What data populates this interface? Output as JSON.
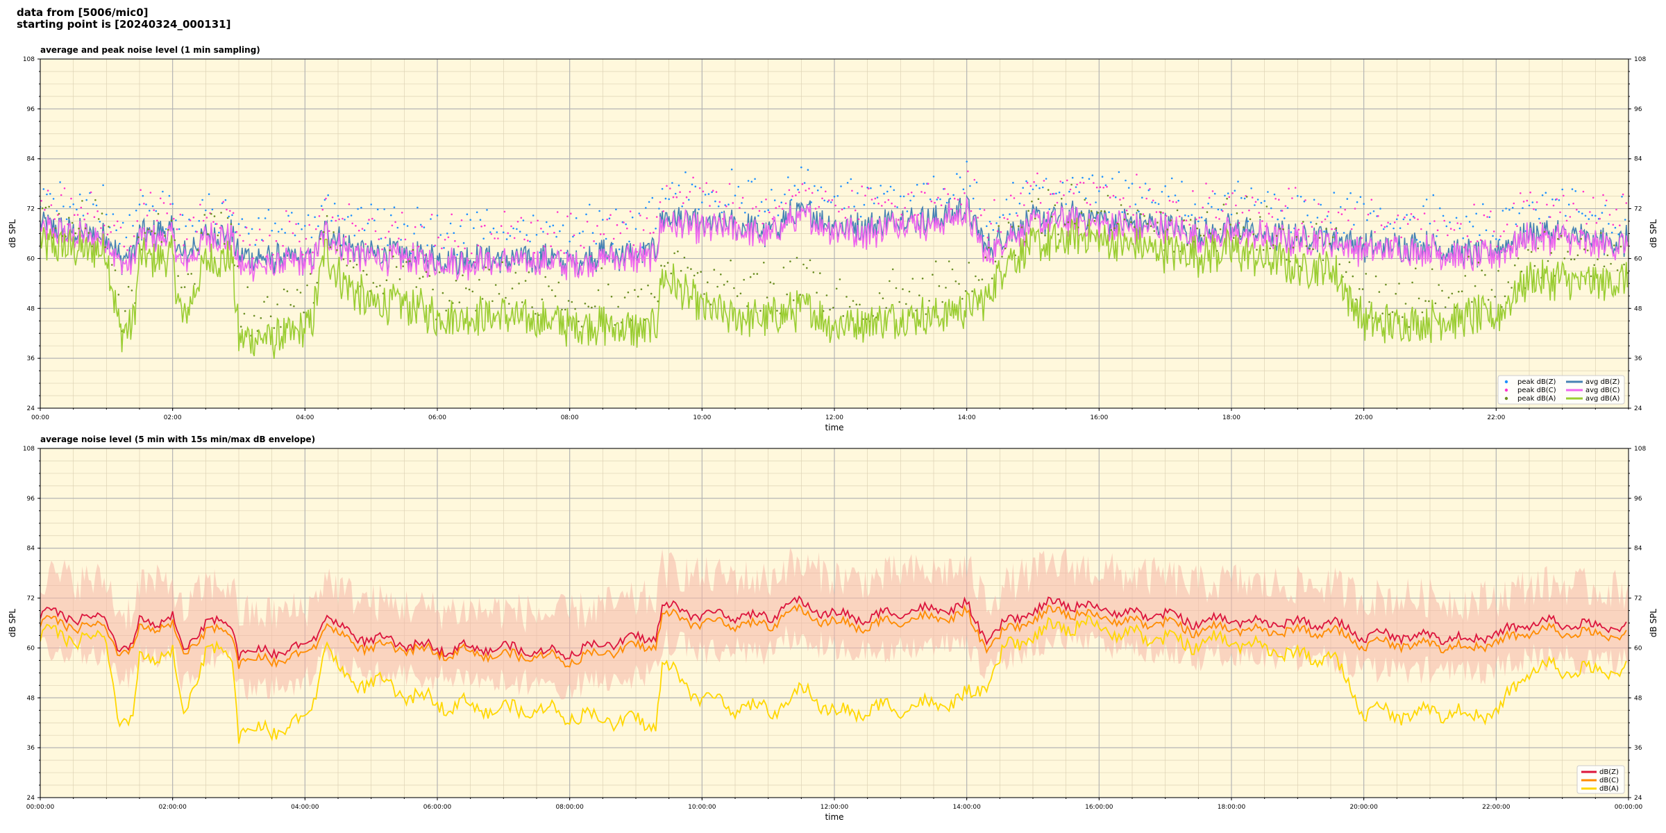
{
  "header": {
    "line1": "data from [5006/mic0]",
    "line2": "starting point is [20240324_000131]"
  },
  "colors": {
    "plot_bg": "#fff8dc",
    "grid_major": "#b4b4b4",
    "grid_minor": "#ddd2b4",
    "avg_z": "#4682b4",
    "avg_c": "#ee66ee",
    "avg_a": "#9acd32",
    "peak_z": "#1e90ff",
    "peak_c": "#ff33cc",
    "peak_a": "#6b8e23",
    "line_z": "#dc143c",
    "line_c": "#ff8c00",
    "line_a": "#ffd700",
    "envelope": "#f5b7a8"
  },
  "chart_data": [
    {
      "type": "line",
      "title": "average and peak noise level (1 min sampling)",
      "xlabel": "time",
      "ylabel": "dB SPL",
      "ylabel_right": "dB SPL",
      "ylim": [
        24,
        108
      ],
      "yticks": [
        24,
        36,
        48,
        60,
        72,
        84,
        96,
        108
      ],
      "xlim_hours": [
        0,
        24
      ],
      "xtick_labels": [
        "00:00",
        "02:00",
        "04:00",
        "06:00",
        "08:00",
        "10:00",
        "12:00",
        "14:00",
        "16:00",
        "18:00",
        "20:00",
        "22:00"
      ],
      "grid": true,
      "legend_position": "bottom-right",
      "legend": [
        "peak dB(Z)",
        "peak dB(C)",
        "peak dB(A)",
        "avg dB(Z)",
        "avg dB(C)",
        "avg dB(A)"
      ],
      "profile": {
        "x_hours": [
          0,
          0.3,
          0.6,
          1.0,
          1.2,
          1.4,
          1.5,
          1.8,
          2.0,
          2.15,
          2.5,
          2.9,
          3.0,
          3.5,
          3.9,
          4.1,
          4.3,
          4.6,
          5.0,
          5.5,
          6.0,
          6.5,
          7.0,
          7.5,
          7.7,
          8.0,
          8.5,
          9.0,
          9.3,
          9.4,
          9.7,
          10.0,
          10.5,
          11.0,
          11.3,
          11.6,
          12.0,
          12.5,
          13.0,
          13.5,
          14.0,
          14.3,
          14.6,
          15.0,
          15.4,
          15.8,
          16.2,
          16.6,
          17.0,
          17.5,
          18.0,
          18.5,
          19.0,
          19.5,
          20.0,
          20.5,
          21.0,
          21.5,
          22.0,
          22.5,
          23.0,
          23.5,
          24.0
        ],
        "avg_z": [
          68,
          67,
          66,
          66,
          60,
          61,
          66,
          66,
          66,
          60,
          66,
          66,
          60,
          60,
          60,
          60,
          67,
          63,
          61,
          61,
          60,
          60,
          60,
          60,
          60,
          59,
          61,
          61,
          62,
          70,
          69,
          68,
          68,
          66,
          70,
          71,
          68,
          67,
          70,
          69,
          72,
          62,
          66,
          69,
          70,
          70,
          69,
          68,
          68,
          66,
          67,
          66,
          65,
          65,
          63,
          63,
          63,
          61,
          62,
          66,
          66,
          64,
          64
        ],
        "avg_c": [
          67,
          66,
          65,
          65,
          58,
          59,
          65,
          65,
          65,
          58,
          65,
          65,
          58,
          58,
          59,
          59,
          66,
          62,
          60,
          60,
          59,
          59,
          59,
          59,
          59,
          58,
          60,
          60,
          61,
          69,
          68,
          67,
          67,
          65,
          69,
          70,
          67,
          66,
          69,
          68,
          71,
          60,
          65,
          68,
          69,
          69,
          68,
          67,
          67,
          65,
          66,
          65,
          64,
          64,
          62,
          62,
          62,
          60,
          61,
          65,
          65,
          63,
          63
        ],
        "avg_a": [
          64,
          63,
          62,
          62,
          42,
          44,
          60,
          60,
          60,
          44,
          60,
          60,
          41,
          41,
          42,
          44,
          62,
          54,
          49,
          49,
          46,
          46,
          46,
          45,
          45,
          44,
          44,
          43,
          43,
          56,
          52,
          48,
          46,
          45,
          47,
          48,
          44,
          45,
          46,
          46,
          48,
          50,
          60,
          63,
          64,
          66,
          64,
          63,
          62,
          61,
          62,
          60,
          58,
          58,
          45,
          44,
          45,
          46,
          46,
          55,
          55,
          54,
          55
        ],
        "peak_offset": 5
      }
    },
    {
      "type": "line",
      "title": "average noise level (5 min with 15s min/max dB envelope)",
      "xlabel": "time",
      "ylabel": "dB SPL",
      "ylabel_right": "dB SPL",
      "ylim": [
        24,
        108
      ],
      "yticks": [
        24,
        36,
        48,
        60,
        72,
        84,
        96,
        108
      ],
      "xlim_hours": [
        0,
        24
      ],
      "xtick_labels": [
        "00:00:00",
        "02:00:00",
        "04:00:00",
        "06:00:00",
        "08:00:00",
        "10:00:00",
        "12:00:00",
        "14:00:00",
        "16:00:00",
        "18:00:00",
        "20:00:00",
        "22:00:00",
        "00:00:00"
      ],
      "grid": true,
      "legend_position": "bottom-right",
      "legend": [
        "dB(Z)",
        "dB(C)",
        "dB(A)"
      ],
      "profile": {
        "x_hours": [
          0,
          0.3,
          0.6,
          1.0,
          1.2,
          1.4,
          1.5,
          1.8,
          2.0,
          2.15,
          2.5,
          2.9,
          3.0,
          3.5,
          3.9,
          4.1,
          4.3,
          4.6,
          5.0,
          5.5,
          6.0,
          6.5,
          7.0,
          7.5,
          7.7,
          8.0,
          8.5,
          9.0,
          9.3,
          9.4,
          9.7,
          10.0,
          10.5,
          11.0,
          11.3,
          11.6,
          12.0,
          12.5,
          13.0,
          13.5,
          14.0,
          14.3,
          14.6,
          15.0,
          15.4,
          15.8,
          16.2,
          16.6,
          17.0,
          17.5,
          18.0,
          18.5,
          19.0,
          19.5,
          20.0,
          20.5,
          21.0,
          21.5,
          22.0,
          22.5,
          23.0,
          23.5,
          24.0
        ],
        "db_z": [
          68,
          68,
          67,
          67,
          59,
          60,
          67,
          66,
          67,
          59,
          66,
          66,
          59,
          59,
          60,
          61,
          68,
          64,
          62,
          61,
          60,
          60,
          60,
          59,
          59,
          59,
          61,
          62,
          63,
          70,
          69,
          68,
          68,
          67,
          71,
          70,
          68,
          67,
          69,
          69,
          70,
          62,
          66,
          69,
          71,
          70,
          69,
          68,
          68,
          66,
          67,
          66,
          66,
          66,
          63,
          63,
          63,
          62,
          63,
          66,
          66,
          65,
          65
        ],
        "db_c": [
          66,
          66,
          65,
          65,
          58,
          59,
          65,
          65,
          65,
          58,
          64,
          64,
          57,
          57,
          58,
          59,
          66,
          62,
          60,
          60,
          59,
          59,
          58,
          58,
          58,
          57,
          59,
          60,
          61,
          68,
          67,
          66,
          66,
          65,
          69,
          68,
          66,
          65,
          67,
          67,
          68,
          60,
          64,
          67,
          69,
          68,
          67,
          66,
          66,
          64,
          65,
          64,
          64,
          64,
          61,
          61,
          61,
          60,
          61,
          64,
          64,
          63,
          63
        ],
        "db_a": [
          63,
          63,
          62,
          62,
          41,
          42,
          58,
          58,
          58,
          43,
          59,
          59,
          40,
          40,
          42,
          44,
          62,
          52,
          52,
          49,
          47,
          46,
          45,
          45,
          45,
          44,
          43,
          42,
          42,
          56,
          52,
          48,
          46,
          45,
          47,
          50,
          44,
          45,
          46,
          46,
          48,
          51,
          60,
          63,
          65,
          66,
          64,
          63,
          62,
          61,
          62,
          60,
          58,
          58,
          45,
          44,
          45,
          44,
          44,
          55,
          55,
          54,
          55
        ],
        "envelope_spread": 7
      }
    }
  ]
}
